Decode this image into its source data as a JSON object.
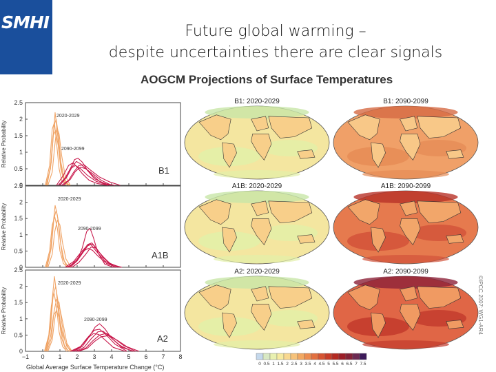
{
  "logo": {
    "text": "SMHI"
  },
  "slide": {
    "title_line1": "Future global warming –",
    "title_line2": "despite uncertainties there are clear signals"
  },
  "figure": {
    "title": "AOGCM Projections of Surface Temperatures",
    "copyright": "©IPCC 2007: WG1-AR4"
  },
  "colors": {
    "logo_bg": "#1a4f9c",
    "early_period": "#f0a466",
    "late_period": "#c8194c"
  },
  "chart_data": [
    {
      "type": "line",
      "panel_label": "B1",
      "xlim": [
        -1,
        8
      ],
      "ylim": [
        0,
        2.5
      ],
      "ylabel": "Relative Probability",
      "xlabel": "",
      "annotations": [
        "2020-2029",
        "2090-2099"
      ],
      "series": [
        {
          "group": "2020-2029",
          "x": [
            0.2,
            0.45,
            0.6,
            0.72,
            0.85,
            1.0,
            1.15,
            1.35,
            1.6
          ],
          "y": [
            0,
            0.5,
            1.4,
            2.2,
            1.6,
            0.8,
            0.3,
            0.08,
            0
          ]
        },
        {
          "group": "2020-2029",
          "x": [
            0.25,
            0.5,
            0.65,
            0.78,
            0.92,
            1.05,
            1.25,
            1.5
          ],
          "y": [
            0,
            0.7,
            1.8,
            2.0,
            1.5,
            0.7,
            0.2,
            0
          ]
        },
        {
          "group": "2020-2029",
          "x": [
            0.15,
            0.4,
            0.55,
            0.68,
            0.8,
            0.95,
            1.1,
            1.4
          ],
          "y": [
            0,
            0.6,
            1.7,
            1.9,
            1.3,
            0.5,
            0.15,
            0
          ]
        },
        {
          "group": "2020-2029",
          "x": [
            0.3,
            0.55,
            0.7,
            0.82,
            0.95,
            1.1,
            1.3,
            1.6
          ],
          "y": [
            0,
            0.4,
            1.2,
            1.75,
            1.55,
            0.9,
            0.3,
            0
          ]
        },
        {
          "group": "2020-2029",
          "x": [
            0.2,
            0.45,
            0.6,
            0.75,
            0.9,
            1.05,
            1.25,
            1.5
          ],
          "y": [
            0,
            0.55,
            1.5,
            1.65,
            1.2,
            0.5,
            0.1,
            0
          ]
        },
        {
          "group": "2090-2099",
          "x": [
            0.9,
            1.3,
            1.6,
            1.85,
            2.05,
            2.3,
            2.6,
            3.0,
            3.6,
            4.2
          ],
          "y": [
            0,
            0.2,
            0.5,
            0.78,
            0.82,
            0.7,
            0.45,
            0.2,
            0.05,
            0
          ]
        },
        {
          "group": "2090-2099",
          "x": [
            1.0,
            1.4,
            1.7,
            1.95,
            2.2,
            2.5,
            2.9,
            3.3,
            3.9
          ],
          "y": [
            0,
            0.25,
            0.55,
            0.72,
            0.65,
            0.5,
            0.3,
            0.12,
            0
          ]
        },
        {
          "group": "2090-2099",
          "x": [
            0.8,
            1.2,
            1.5,
            1.75,
            2.0,
            2.3,
            2.7,
            3.2,
            3.8
          ],
          "y": [
            0,
            0.3,
            0.6,
            0.68,
            0.55,
            0.35,
            0.15,
            0.05,
            0
          ]
        },
        {
          "group": "2090-2099",
          "x": [
            1.1,
            1.5,
            1.8,
            2.1,
            2.4,
            2.8,
            3.3,
            3.9,
            4.5
          ],
          "y": [
            0,
            0.15,
            0.4,
            0.6,
            0.62,
            0.45,
            0.25,
            0.1,
            0
          ]
        },
        {
          "group": "2090-2099",
          "x": [
            1.2,
            1.6,
            1.9,
            2.2,
            2.5,
            2.9,
            3.4,
            4.0
          ],
          "y": [
            0,
            0.18,
            0.42,
            0.55,
            0.5,
            0.35,
            0.15,
            0
          ]
        },
        {
          "group": "2090-2099",
          "x": [
            0.9,
            1.3,
            1.6,
            1.9,
            2.2,
            2.6,
            3.1,
            3.8
          ],
          "y": [
            0,
            0.22,
            0.5,
            0.6,
            0.5,
            0.3,
            0.12,
            0
          ]
        }
      ]
    },
    {
      "type": "line",
      "panel_label": "A1B",
      "xlim": [
        -1,
        8
      ],
      "ylim": [
        0,
        2.5
      ],
      "ylabel": "Relative Probability",
      "xlabel": "",
      "annotations": [
        "2020-2029",
        "2090-2099"
      ],
      "series": [
        {
          "group": "2020-2029",
          "x": [
            0.2,
            0.45,
            0.6,
            0.72,
            0.85,
            1.0,
            1.15,
            1.35,
            1.6
          ],
          "y": [
            0,
            0.5,
            1.3,
            1.9,
            1.6,
            0.9,
            0.3,
            0.08,
            0
          ]
        },
        {
          "group": "2020-2029",
          "x": [
            0.25,
            0.5,
            0.65,
            0.78,
            0.92,
            1.05,
            1.25,
            1.5
          ],
          "y": [
            0,
            0.6,
            1.5,
            1.75,
            1.4,
            0.7,
            0.2,
            0
          ]
        },
        {
          "group": "2020-2029",
          "x": [
            0.15,
            0.4,
            0.55,
            0.7,
            0.85,
            1.0,
            1.2,
            1.45
          ],
          "y": [
            0,
            0.5,
            1.3,
            1.55,
            1.2,
            0.5,
            0.12,
            0
          ]
        },
        {
          "group": "2020-2029",
          "x": [
            0.3,
            0.55,
            0.7,
            0.85,
            1.0,
            1.15,
            1.35,
            1.65
          ],
          "y": [
            0,
            0.4,
            1.1,
            1.45,
            1.3,
            0.75,
            0.25,
            0
          ]
        },
        {
          "group": "2090-2099",
          "x": [
            1.6,
            2.0,
            2.3,
            2.55,
            2.75,
            2.95,
            3.2,
            3.6,
            4.1
          ],
          "y": [
            0,
            0.2,
            0.6,
            1.1,
            1.2,
            0.9,
            0.45,
            0.1,
            0
          ]
        },
        {
          "group": "2090-2099",
          "x": [
            1.4,
            1.9,
            2.3,
            2.6,
            2.85,
            3.1,
            3.5,
            4.0,
            4.6
          ],
          "y": [
            0,
            0.15,
            0.45,
            0.7,
            0.75,
            0.6,
            0.3,
            0.08,
            0
          ]
        },
        {
          "group": "2090-2099",
          "x": [
            1.5,
            2.0,
            2.4,
            2.7,
            2.95,
            3.3,
            3.8,
            4.4
          ],
          "y": [
            0,
            0.2,
            0.5,
            0.72,
            0.68,
            0.45,
            0.15,
            0
          ]
        },
        {
          "group": "2090-2099",
          "x": [
            1.3,
            1.8,
            2.2,
            2.55,
            2.8,
            3.1,
            3.6,
            4.2
          ],
          "y": [
            0,
            0.18,
            0.45,
            0.65,
            0.7,
            0.5,
            0.2,
            0
          ]
        },
        {
          "group": "2090-2099",
          "x": [
            1.7,
            2.1,
            2.5,
            2.8,
            3.05,
            3.4,
            3.9,
            4.5
          ],
          "y": [
            0,
            0.15,
            0.4,
            0.62,
            0.6,
            0.38,
            0.12,
            0
          ]
        },
        {
          "group": "2090-2099",
          "x": [
            1.5,
            1.95,
            2.35,
            2.65,
            2.9,
            3.2,
            3.7,
            4.3
          ],
          "y": [
            0,
            0.22,
            0.5,
            0.58,
            0.52,
            0.35,
            0.12,
            0
          ]
        }
      ]
    },
    {
      "type": "line",
      "panel_label": "A2",
      "xlim": [
        -1,
        8
      ],
      "ylim": [
        0,
        2.5
      ],
      "ylabel": "Relative Probability",
      "xlabel": "Global Average Surface Temperature Change (°C)",
      "annotations": [
        "2020-2029",
        "2090-2099"
      ],
      "series": [
        {
          "group": "2020-2029",
          "x": [
            0.15,
            0.4,
            0.55,
            0.68,
            0.8,
            0.95,
            1.1,
            1.3,
            1.55
          ],
          "y": [
            0,
            0.6,
            1.6,
            2.3,
            1.8,
            1.0,
            0.4,
            0.1,
            0
          ]
        },
        {
          "group": "2020-2029",
          "x": [
            0.2,
            0.45,
            0.6,
            0.75,
            0.9,
            1.05,
            1.25,
            1.5
          ],
          "y": [
            0,
            0.7,
            1.7,
            2.0,
            1.5,
            0.7,
            0.2,
            0
          ]
        },
        {
          "group": "2020-2029",
          "x": [
            0.1,
            0.35,
            0.5,
            0.65,
            0.8,
            0.95,
            1.15,
            1.4
          ],
          "y": [
            0,
            0.5,
            1.4,
            1.8,
            1.4,
            0.6,
            0.15,
            0
          ]
        },
        {
          "group": "2020-2029",
          "x": [
            0.25,
            0.5,
            0.65,
            0.8,
            0.95,
            1.1,
            1.3,
            1.6
          ],
          "y": [
            0,
            0.4,
            1.2,
            1.6,
            1.5,
            0.9,
            0.3,
            0
          ]
        },
        {
          "group": "2020-2029",
          "x": [
            0.3,
            0.55,
            0.7,
            0.85,
            1.0,
            1.2,
            1.4,
            1.7
          ],
          "y": [
            0,
            0.35,
            1.0,
            1.4,
            1.3,
            0.8,
            0.25,
            0
          ]
        },
        {
          "group": "2020-2029",
          "x": [
            0.2,
            0.45,
            0.62,
            0.8,
            0.98,
            1.15,
            1.4,
            1.7
          ],
          "y": [
            0,
            0.45,
            1.1,
            1.25,
            1.0,
            0.55,
            0.15,
            0
          ]
        },
        {
          "group": "2090-2099",
          "x": [
            1.8,
            2.3,
            2.7,
            3.05,
            3.3,
            3.6,
            4.0,
            4.6,
            5.3
          ],
          "y": [
            0,
            0.15,
            0.45,
            0.75,
            0.85,
            0.7,
            0.4,
            0.12,
            0
          ]
        },
        {
          "group": "2090-2099",
          "x": [
            1.6,
            2.2,
            2.6,
            3.0,
            3.3,
            3.7,
            4.2,
            4.9
          ],
          "y": [
            0,
            0.15,
            0.42,
            0.65,
            0.68,
            0.5,
            0.22,
            0
          ]
        },
        {
          "group": "2090-2099",
          "x": [
            1.9,
            2.4,
            2.8,
            3.2,
            3.5,
            3.9,
            4.5,
            5.2
          ],
          "y": [
            0,
            0.12,
            0.38,
            0.6,
            0.62,
            0.45,
            0.18,
            0
          ]
        },
        {
          "group": "2090-2099",
          "x": [
            2.0,
            2.5,
            2.9,
            3.3,
            3.7,
            4.1,
            4.7,
            5.4
          ],
          "y": [
            0,
            0.1,
            0.32,
            0.5,
            0.55,
            0.42,
            0.18,
            0
          ]
        },
        {
          "group": "2090-2099",
          "x": [
            1.7,
            2.2,
            2.6,
            2.95,
            3.25,
            3.6,
            4.1,
            4.8
          ],
          "y": [
            0,
            0.14,
            0.4,
            0.55,
            0.52,
            0.36,
            0.12,
            0
          ]
        },
        {
          "group": "2090-2099",
          "x": [
            2.1,
            2.6,
            3.0,
            3.4,
            3.8,
            4.3,
            4.9,
            5.6
          ],
          "y": [
            0,
            0.1,
            0.3,
            0.45,
            0.48,
            0.35,
            0.14,
            0
          ]
        }
      ]
    },
    {
      "type": "heatmap",
      "maps": [
        {
          "label": "B1: 2020-2029",
          "palette": "low"
        },
        {
          "label": "B1: 2090-2099",
          "palette": "mid"
        },
        {
          "label": "A1B: 2020-2029",
          "palette": "low"
        },
        {
          "label": "A1B: 2090-2099",
          "palette": "high"
        },
        {
          "label": "A2: 2020-2029",
          "palette": "low"
        },
        {
          "label": "A2: 2090-2099",
          "palette": "higher"
        }
      ],
      "colorbar": {
        "ticks": [
          "0",
          "0.5",
          "1",
          "1.5",
          "2",
          "2.5",
          "3",
          "3.5",
          "4",
          "4.5",
          "5",
          "5.5",
          "6",
          "6.5",
          "7",
          "7.5"
        ],
        "colors": [
          "#c4d8ec",
          "#d8e8c4",
          "#e8f0b0",
          "#f6eaa0",
          "#f8d890",
          "#f6c27a",
          "#f2a862",
          "#ec8c50",
          "#e27040",
          "#d65432",
          "#c83c28",
          "#b42a22",
          "#9c1e28",
          "#842238",
          "#6c2a52",
          "#3c1a5a"
        ]
      }
    }
  ]
}
